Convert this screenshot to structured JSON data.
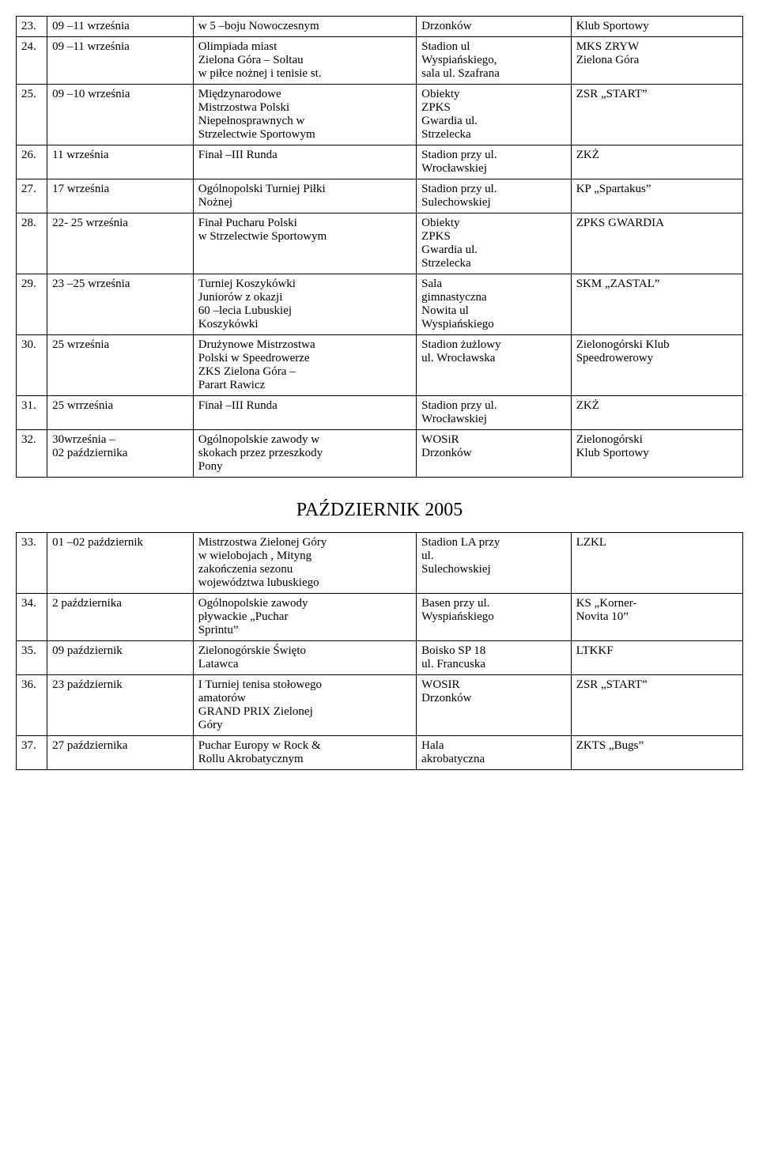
{
  "table1": {
    "rows": [
      {
        "n": "23.",
        "date": "09 –11 września",
        "event": "w 5 –boju Nowoczesnym",
        "place": "Drzonków",
        "org": "Klub Sportowy"
      },
      {
        "n": "24.",
        "date": "09 –11 września",
        "event": "  Olimpiada miast\nZielona Góra – Soltau\nw piłce nożnej i tenisie st.",
        "place": "Stadion ul\nWyspiańskiego,\nsala ul. Szafrana",
        "org": "  MKS ZRYW\nZielona Góra"
      },
      {
        "n": "25.",
        "date": "09 –10 września",
        "event": "Międzynarodowe\nMistrzostwa Polski\nNiepełnosprawnych w\nStrzelectwie Sportowym",
        "place": "Obiekty\nZPKS\nGwardia ul.\nStrzelecka",
        "org": "ZSR „START”"
      },
      {
        "n": "26.",
        "date": "11 września",
        "event": "Finał –III Runda",
        "place": "Stadion przy ul.\nWrocławskiej",
        "org": "ZKŻ"
      },
      {
        "n": "27.",
        "date": "17 września",
        "event": "Ogólnopolski Turniej Piłki\nNożnej",
        "place": "Stadion przy ul.\nSulechowskiej",
        "org": "KP „Spartakus”"
      },
      {
        "n": "28.",
        "date": "22- 25 września",
        "event": "Finał Pucharu Polski\nw Strzelectwie Sportowym",
        "place": "  Obiekty\nZPKS\nGwardia ul.\nStrzelecka",
        "org": "  ZPKS GWARDIA"
      },
      {
        "n": "29.",
        "date": "23 –25 września",
        "event": "Turniej Koszykówki\nJuniorów  z okazji\n60 –lecia  Lubuskiej\nKoszykówki",
        "place": "Sala\ngimnastyczna\nNowita ul\nWyspiańskiego",
        "org": "SKM „ZASTAL”"
      },
      {
        "n": "30.",
        "date": "25 września",
        "event": "  Drużynowe Mistrzostwa\nPolski w Speedrowerze\nZKS Zielona Góra –\nParart Rawicz",
        "place": "  Stadion żużlowy\nul. Wrocławska",
        "org": "Zielonogórski Klub\nSpeedrowerowy"
      },
      {
        "n": "31.",
        "date": "25 wrrześnia",
        "event": "Finał –III Runda",
        "place": "Stadion przy ul.\nWrocławskiej",
        "org": "ZKŻ"
      },
      {
        "n": "32.",
        "date": "30września –\n02 października",
        "event": "  Ogólnopolskie zawody w\nskokach przez przeszkody\nPony",
        "place": "WOSiR\nDrzonków",
        "org": "Zielonogórski\nKlub Sportowy"
      }
    ]
  },
  "section_title": "PAŹDZIERNIK 2005",
  "table2": {
    "rows": [
      {
        "n": "33.",
        "date": "01 –02 październik",
        "event": "Mistrzostwa Zielonej Góry\nw wielobojach , Mityng\nzakończenia sezonu\nwojewództwa lubuskiego",
        "place": "  Stadion LA przy\nul.\nSulechowskiej",
        "org": "          LZKL"
      },
      {
        "n": "34.",
        "date": "2 października",
        "event": "Ogólnopolskie zawody\npływackie „Puchar\nSprintu”",
        "place": "Basen przy ul.\nWyspiańskiego",
        "org": "KS   „Korner-\nNovita 10”"
      },
      {
        "n": "35.",
        "date": " 09 październik",
        "event": "Zielonogórskie Święto\nLatawca",
        "place": "Boisko SP 18\nul. Francuska",
        "org": "       LTKKF"
      },
      {
        "n": "36.",
        "date": "23 październik",
        "event": "  I Turniej tenisa stołowego\namatorów\nGRAND PRIX Zielonej\nGóry",
        "place": "WOSIR\nDrzonków",
        "org": "   ZSR „START”"
      },
      {
        "n": "37.",
        "date": "27 października",
        "event": "Puchar Europy w Rock &\nRollu Akrobatycznym",
        "place": "Hala\nakrobatyczna",
        "org": "ZKTS „Bugs”"
      }
    ]
  }
}
